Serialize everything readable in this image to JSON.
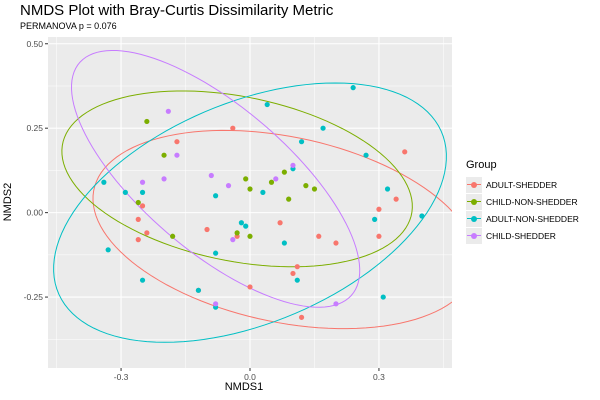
{
  "chart_data": {
    "type": "scatter",
    "title": "NMDS Plot with Bray-Curtis Dissimilarity Metric",
    "subtitle": "PERMANOVA p = 0.076",
    "xlabel": "NMDS1",
    "ylabel": "NMDS2",
    "xlim": [
      -0.47,
      0.47
    ],
    "ylim": [
      -0.46,
      0.52
    ],
    "x_ticks": [
      -0.3,
      0.0,
      0.3
    ],
    "x_tick_labels": [
      "-0.3",
      "0.0",
      "0.3"
    ],
    "y_ticks": [
      -0.25,
      0.0,
      0.25,
      0.5
    ],
    "y_tick_labels": [
      "-0.25",
      "0.00",
      "0.25",
      "0.50"
    ],
    "grid": true,
    "legend": {
      "title": "Group",
      "position": "right"
    },
    "series": [
      {
        "name": "ADULT-SHEDDER",
        "color": "#F8766D",
        "points": [
          [
            -0.04,
            0.25
          ],
          [
            -0.17,
            0.21
          ],
          [
            0.36,
            0.18
          ],
          [
            0.34,
            0.04
          ],
          [
            0.3,
            0.01
          ],
          [
            -0.25,
            0.02
          ],
          [
            -0.26,
            -0.02
          ],
          [
            -0.24,
            -0.06
          ],
          [
            -0.26,
            -0.08
          ],
          [
            -0.1,
            -0.05
          ],
          [
            0.07,
            -0.03
          ],
          [
            -0.03,
            -0.07
          ],
          [
            0.16,
            -0.07
          ],
          [
            0.2,
            -0.09
          ],
          [
            0.3,
            -0.07
          ],
          [
            0.11,
            -0.16
          ],
          [
            0.1,
            -0.18
          ],
          [
            -0.12,
            -0.23
          ],
          [
            0.0,
            -0.22
          ],
          [
            0.12,
            -0.31
          ]
        ]
      },
      {
        "name": "CHILD-NON-SHEDDER",
        "color": "#7CAE00",
        "points": [
          [
            -0.24,
            0.27
          ],
          [
            -0.2,
            0.17
          ],
          [
            -0.01,
            0.1
          ],
          [
            0.0,
            0.07
          ],
          [
            0.05,
            0.09
          ],
          [
            0.08,
            0.12
          ],
          [
            0.13,
            0.08
          ],
          [
            0.15,
            0.07
          ],
          [
            0.09,
            0.04
          ],
          [
            -0.26,
            0.03
          ],
          [
            -0.18,
            -0.07
          ],
          [
            -0.03,
            -0.06
          ],
          [
            0.0,
            -0.07
          ]
        ]
      },
      {
        "name": "ADULT-NON-SHEDDER",
        "color": "#00BFC4",
        "points": [
          [
            0.24,
            0.37
          ],
          [
            0.04,
            0.32
          ],
          [
            0.17,
            0.25
          ],
          [
            0.12,
            0.21
          ],
          [
            0.27,
            0.17
          ],
          [
            0.1,
            0.13
          ],
          [
            0.32,
            0.07
          ],
          [
            -0.34,
            0.09
          ],
          [
            -0.29,
            0.06
          ],
          [
            -0.25,
            0.06
          ],
          [
            -0.08,
            0.05
          ],
          [
            0.03,
            0.06
          ],
          [
            0.4,
            -0.01
          ],
          [
            0.29,
            -0.02
          ],
          [
            -0.01,
            -0.04
          ],
          [
            -0.02,
            -0.03
          ],
          [
            0.08,
            -0.09
          ],
          [
            -0.33,
            -0.11
          ],
          [
            -0.08,
            -0.12
          ],
          [
            -0.25,
            -0.2
          ],
          [
            -0.12,
            -0.23
          ],
          [
            -0.08,
            -0.28
          ],
          [
            0.31,
            -0.25
          ],
          [
            0.11,
            -0.2
          ]
        ]
      },
      {
        "name": "CHILD-SHEDDER",
        "color": "#C77CFF",
        "points": [
          [
            -0.19,
            0.3
          ],
          [
            -0.17,
            0.17
          ],
          [
            -0.25,
            0.09
          ],
          [
            -0.2,
            0.1
          ],
          [
            -0.09,
            0.11
          ],
          [
            -0.05,
            0.08
          ],
          [
            0.06,
            0.1
          ],
          [
            0.1,
            0.14
          ],
          [
            -0.04,
            -0.08
          ],
          [
            -0.08,
            -0.27
          ],
          [
            0.2,
            -0.27
          ]
        ]
      }
    ],
    "ellipses": [
      {
        "group": "ADULT-SHEDDER",
        "color": "#F8766D",
        "cx": 0.08,
        "cy": -0.05,
        "rx": 0.46,
        "ry": 0.27,
        "angle_deg": -18
      },
      {
        "group": "CHILD-NON-SHEDDER",
        "color": "#7CAE00",
        "cx": -0.03,
        "cy": 0.1,
        "rx": 0.42,
        "ry": 0.24,
        "angle_deg": -17
      },
      {
        "group": "ADULT-NON-SHEDDER",
        "color": "#00BFC4",
        "cx": 0.0,
        "cy": 0.0,
        "rx": 0.51,
        "ry": 0.31,
        "angle_deg": 34
      },
      {
        "group": "CHILD-SHEDDER",
        "color": "#C77CFF",
        "cx": -0.08,
        "cy": 0.1,
        "rx": 0.47,
        "ry": 0.19,
        "angle_deg": -50
      }
    ]
  }
}
